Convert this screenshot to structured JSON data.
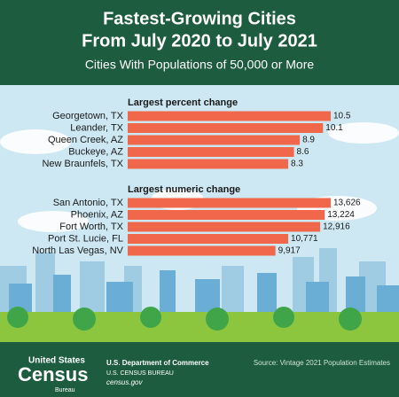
{
  "header": {
    "title_line1": "Fastest-Growing Cities",
    "title_line2": "From July 2020 to July 2021",
    "subtitle": "Cities With Populations of 50,000 or More"
  },
  "chart_data": [
    {
      "type": "bar",
      "orientation": "horizontal",
      "title": "Largest percent change",
      "categories": [
        "Georgetown, TX",
        "Leander, TX",
        "Queen Creek, AZ",
        "Buckeye, AZ",
        "New Braunfels, TX"
      ],
      "values": [
        10.5,
        10.1,
        8.9,
        8.6,
        8.3
      ],
      "color": "#f0674b"
    },
    {
      "type": "bar",
      "orientation": "horizontal",
      "title": "Largest numeric change",
      "categories": [
        "San Antonio, TX",
        "Phoenix, AZ",
        "Fort Worth, TX",
        "Port St. Lucie, FL",
        "North Las Vegas, NV"
      ],
      "values": [
        13626,
        13224,
        12916,
        10771,
        9917
      ],
      "value_labels": [
        "13,626",
        "13,224",
        "12,916",
        "10,771",
        "9,917"
      ],
      "color": "#f0674b"
    }
  ],
  "footer": {
    "logo_line1": "United States",
    "logo_line2": "Census",
    "logo_line3": "Bureau",
    "dept": "U.S. Department of Commerce",
    "bureau": "U.S. CENSUS BUREAU",
    "site": "census.gov",
    "source": "Source: Vintage 2021 Population Estimates"
  }
}
